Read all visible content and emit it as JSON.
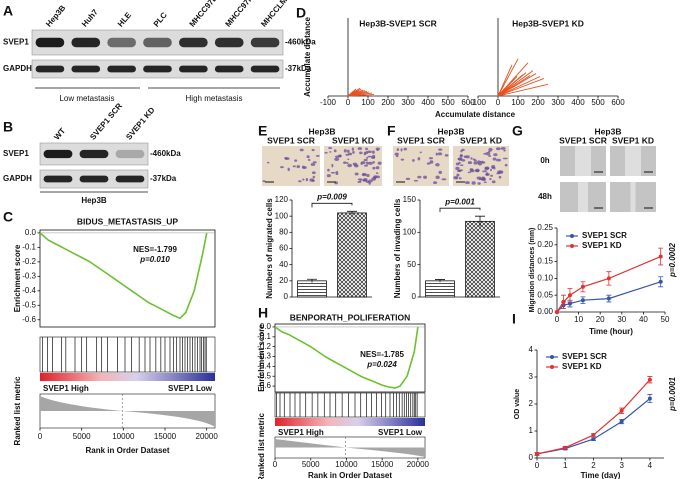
{
  "panel_labels": [
    "A",
    "B",
    "C",
    "D",
    "E",
    "F",
    "G",
    "H",
    "I"
  ],
  "blot_a": {
    "lanes": [
      "Hep3B",
      "Huh7",
      "HLE",
      "PLC",
      "MHCC97L",
      "MHCC97H",
      "MHCCLM3"
    ],
    "proteins": [
      "SVEP1",
      "GAPDH"
    ],
    "sizes": [
      "-460kDa",
      "-37kDa"
    ],
    "groups": [
      "Low metastasis",
      "High metastasis"
    ]
  },
  "blot_b": {
    "lanes": [
      "WT",
      "SVEP1 SCR",
      "SVEP1 KD"
    ],
    "proteins": [
      "SVEP1",
      "GAPDH"
    ],
    "sizes": [
      "-460kDa",
      "-37kDa"
    ],
    "cell_line": "Hep3B"
  },
  "images_e": {
    "title": "Hep3B",
    "labels": [
      "SVEP1 SCR",
      "SVEP1 KD"
    ]
  },
  "images_f": {
    "title": "Hep3B",
    "labels": [
      "SVEP1 SCR",
      "SVEP1 KD"
    ]
  },
  "images_g": {
    "title": "Hep3B",
    "labels": [
      "SVEP1 SCR",
      "SVEP1 KD"
    ],
    "rows": [
      "0h",
      "48h"
    ]
  },
  "chart_data": [
    {
      "type": "gsea",
      "title": "BIDUS_METASTASIS_UP",
      "annotations": [
        "NES=-1.799",
        "p=0.010"
      ],
      "y_label": "Enrichment score",
      "x_label": "Rank in Order Dataset",
      "metric_label": "Ranked list metric",
      "phenotypes": [
        "SVEP1 High",
        "SVEP1 Low"
      ],
      "color": "#6cc12f",
      "x": [
        0,
        1000,
        2000,
        3000,
        4000,
        5000,
        6000,
        7000,
        8000,
        9000,
        10000,
        11000,
        12000,
        13000,
        14000,
        15000,
        16000,
        16800,
        17500,
        18500,
        19500,
        20000
      ],
      "values": [
        0,
        -0.05,
        -0.08,
        -0.11,
        -0.14,
        -0.17,
        -0.2,
        -0.24,
        -0.28,
        -0.32,
        -0.36,
        -0.4,
        -0.44,
        -0.48,
        -0.51,
        -0.54,
        -0.57,
        -0.59,
        -0.55,
        -0.4,
        -0.15,
        0
      ],
      "hits": [
        300,
        900,
        1500,
        2600,
        3100,
        4200,
        5000,
        5600,
        6800,
        7400,
        8100,
        9300,
        10200,
        11000,
        11900,
        12600,
        13200,
        13900,
        14500,
        15000,
        15600,
        16000,
        16400,
        16800,
        17100,
        17400,
        17700,
        18000,
        18300,
        18600,
        18900,
        19200,
        19400,
        19600,
        19800,
        19950
      ],
      "xlim": [
        0,
        21000
      ],
      "xticks": [
        0,
        5000,
        10000,
        15000,
        20000
      ],
      "ylim": [
        -0.65,
        0.02
      ],
      "yticks": [
        {
          "value": 0,
          "label": "0.0"
        },
        -0.1,
        -0.2,
        -0.3,
        -0.4,
        -0.5,
        -0.6
      ]
    },
    {
      "type": "scatter",
      "title": "Hep3B-SVEP1 SCR",
      "y_label": "Accumulate distance",
      "color": "#e8501e",
      "x": [
        5,
        15,
        25,
        35,
        45,
        55,
        65,
        75,
        85,
        95,
        105,
        120,
        130,
        60,
        40
      ],
      "values": [
        5,
        12,
        20,
        25,
        30,
        28,
        35,
        30,
        28,
        24,
        20,
        15,
        8,
        40,
        36
      ],
      "xlim": [
        -100,
        600
      ],
      "xticks": [
        -100,
        0,
        100,
        200,
        300,
        400,
        500,
        600
      ],
      "ylim": [
        0,
        400
      ]
    },
    {
      "type": "scatter",
      "title": "Hep3B-SVEP1 KD",
      "x_label": "Accumulate distance",
      "color": "#e8501e",
      "x": [
        10,
        20,
        35,
        50,
        65,
        80,
        95,
        110,
        125,
        140,
        160,
        175,
        190,
        210,
        230,
        250,
        70,
        100,
        150
      ],
      "values": [
        10,
        25,
        40,
        55,
        70,
        85,
        100,
        95,
        110,
        120,
        105,
        130,
        115,
        100,
        90,
        60,
        160,
        190,
        170
      ],
      "xlim": [
        -100,
        600
      ],
      "xticks": [
        -100,
        0,
        100,
        200,
        300,
        400,
        500,
        600
      ],
      "ylim": [
        0,
        400
      ]
    },
    {
      "type": "bar",
      "y_label": "Numbers of migrated cells",
      "annotation": "p=0.009",
      "values": [
        20,
        104
      ],
      "errors": [
        2,
        2
      ],
      "ylim": [
        0,
        120
      ],
      "yticks": [
        0,
        20,
        40,
        60,
        80,
        100,
        120
      ]
    },
    {
      "type": "bar",
      "y_label": "Numbers of invading cells",
      "annotation": "p=0.001",
      "values": [
        25,
        117
      ],
      "errors": [
        2,
        8
      ],
      "ylim": [
        0,
        150
      ],
      "yticks": [
        0,
        50,
        100,
        150
      ]
    },
    {
      "type": "line",
      "x_label": "Time (hour)",
      "y_label": "Migration distances (mm)",
      "annotation": "p=0.0002",
      "x": [
        0,
        3,
        6,
        12,
        24,
        48
      ],
      "series": [
        {
          "name": "SVEP1 SCR",
          "color": "#3556a8",
          "values": [
            0,
            0.02,
            0.025,
            0.035,
            0.04,
            0.09
          ],
          "errors": [
            0,
            0.01,
            0.01,
            0.01,
            0.01,
            0.015
          ]
        },
        {
          "name": "SVEP1 KD",
          "color": "#e03232",
          "values": [
            0,
            0.03,
            0.05,
            0.075,
            0.1,
            0.165
          ],
          "errors": [
            0,
            0.02,
            0.02,
            0.015,
            0.02,
            0.025
          ]
        }
      ],
      "xlim": [
        0,
        50
      ],
      "xticks": [
        0,
        10,
        20,
        30,
        40,
        50
      ],
      "ylim": [
        0,
        0.25
      ],
      "yticks": [
        {
          "value": 0,
          "label": "0.00"
        },
        0.05,
        {
          "value": 0.1,
          "label": "0.10"
        },
        0.15,
        {
          "value": 0.2,
          "label": "0.20"
        },
        0.25
      ]
    },
    {
      "type": "gsea",
      "title": "BENPORATH_POLIFERATION",
      "annotations": [
        "NES=-1.785",
        "p=0.024"
      ],
      "y_label": "Enrichment score",
      "x_label": "Rank in Order Dataset",
      "metric_label": "Ranked list metric",
      "phenotypes": [
        "SVEP1 High",
        "SVEP1 Low"
      ],
      "color": "#6cc12f",
      "x": [
        0,
        1000,
        2000,
        3000,
        4000,
        5000,
        6000,
        7000,
        8000,
        9000,
        10000,
        11000,
        12000,
        13000,
        14000,
        15000,
        16000,
        16800,
        17500,
        18500,
        19500,
        20000
      ],
      "values": [
        0,
        -0.05,
        -0.08,
        -0.12,
        -0.16,
        -0.2,
        -0.25,
        -0.3,
        -0.34,
        -0.38,
        -0.42,
        -0.46,
        -0.5,
        -0.53,
        -0.56,
        -0.59,
        -0.61,
        -0.62,
        -0.6,
        -0.5,
        -0.25,
        0
      ],
      "hits": [
        200,
        700,
        1300,
        2100,
        2800,
        3500,
        4300,
        5200,
        6000,
        6900,
        7700,
        8500,
        9400,
        10300,
        11200,
        12000,
        12800,
        13500,
        14200,
        14900,
        15500,
        16100,
        16600,
        17000,
        17400,
        17800,
        18100,
        18400,
        18700,
        19000,
        19300,
        19500,
        19700,
        19900
      ],
      "xlim": [
        0,
        21000
      ],
      "xticks": [
        0,
        5000,
        10000,
        15000,
        20000
      ],
      "ylim": [
        -0.66,
        0.03
      ],
      "yticks": [
        {
          "value": 0,
          "label": "0.0"
        },
        -0.1,
        -0.2,
        -0.3,
        -0.4,
        -0.5,
        -0.6
      ]
    },
    {
      "type": "line",
      "x_label": "Time (day)",
      "y_label": "OD value",
      "annotation": "p=0.0001",
      "x": [
        0,
        1,
        2,
        3,
        4
      ],
      "series": [
        {
          "name": "SVEP1 SCR",
          "color": "#3556a8",
          "values": [
            0.15,
            0.35,
            0.7,
            1.35,
            2.2
          ],
          "errors": [
            0.05,
            0.05,
            0.05,
            0.08,
            0.15
          ]
        },
        {
          "name": "SVEP1 KD",
          "color": "#e03232",
          "values": [
            0.15,
            0.38,
            0.85,
            1.75,
            2.9
          ],
          "errors": [
            0.05,
            0.05,
            0.05,
            0.1,
            0.12
          ]
        }
      ],
      "xlim": [
        0,
        4.5
      ],
      "xticks": [
        0,
        1,
        2,
        3,
        4
      ],
      "ylim": [
        0,
        4
      ],
      "yticks": [
        0,
        1,
        2,
        3,
        4
      ]
    }
  ]
}
